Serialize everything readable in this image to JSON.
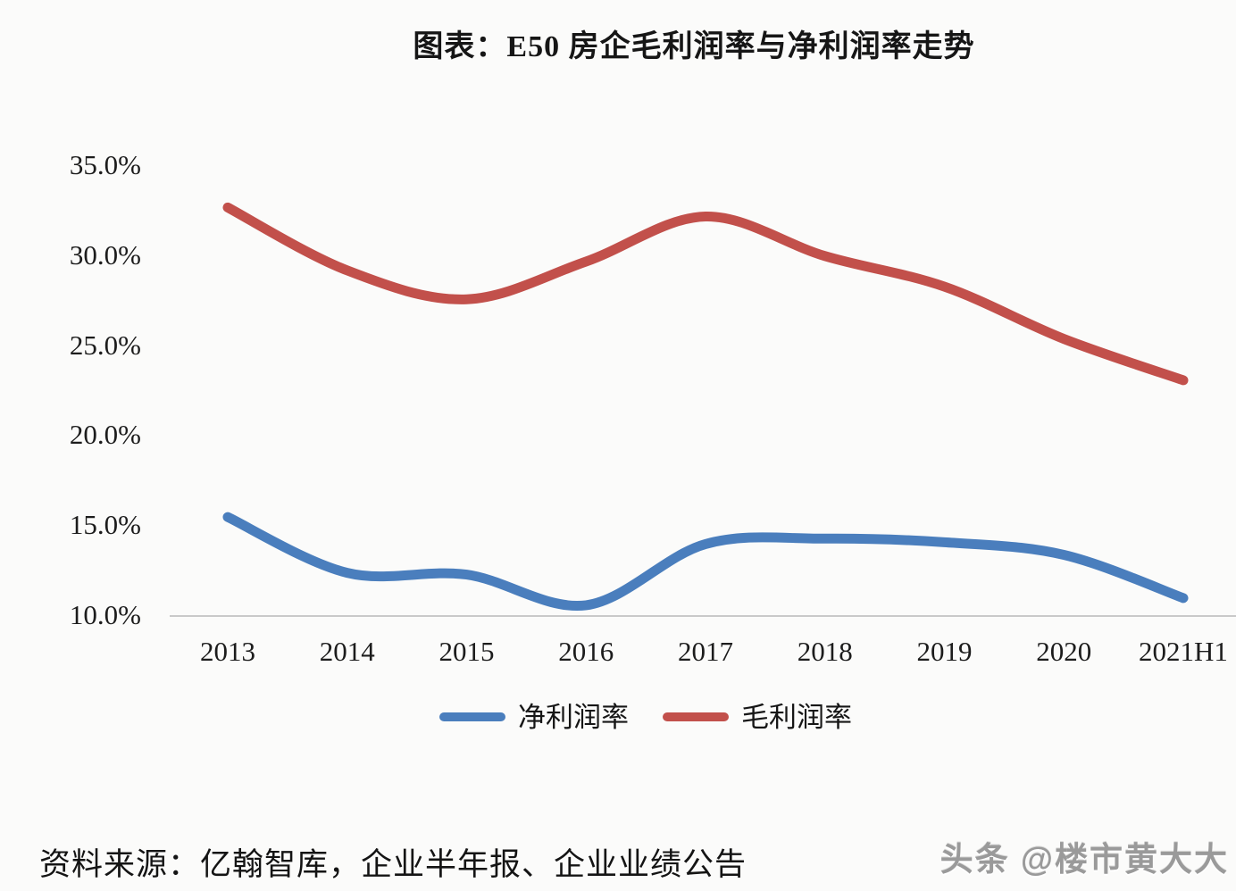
{
  "title": "图表：E50 房企毛利润率与净利润率走势",
  "source_note": "资料来源：亿翰智库，企业半年报、企业业绩公告",
  "watermark": "头条 @楼市黄大大",
  "colors": {
    "net_profit_line": "#4a7ebd",
    "gross_profit_line": "#c2504b",
    "axis_line": "#c9c9c9",
    "background": "#fbfbfa"
  },
  "chart_data": {
    "type": "line",
    "smoothed": true,
    "grid": false,
    "legend_position": "bottom",
    "categories": [
      "2013",
      "2014",
      "2015",
      "2016",
      "2017",
      "2018",
      "2019",
      "2020",
      "2021H1"
    ],
    "series": [
      {
        "name": "净利润率",
        "color": "#4a7ebd",
        "values": [
          15.4,
          12.3,
          12.2,
          10.5,
          13.9,
          14.2,
          14.0,
          13.3,
          10.9
        ]
      },
      {
        "name": "毛利润率",
        "color": "#c2504b",
        "values": [
          32.6,
          29.1,
          27.5,
          29.6,
          32.1,
          29.9,
          28.2,
          25.3,
          23.0
        ]
      }
    ],
    "ylim": [
      10,
      35
    ],
    "ytick_step": 5,
    "ytick_labels": [
      "10.0%",
      "15.0%",
      "20.0%",
      "25.0%",
      "30.0%",
      "35.0%"
    ],
    "ylabel": "",
    "xlabel": ""
  }
}
